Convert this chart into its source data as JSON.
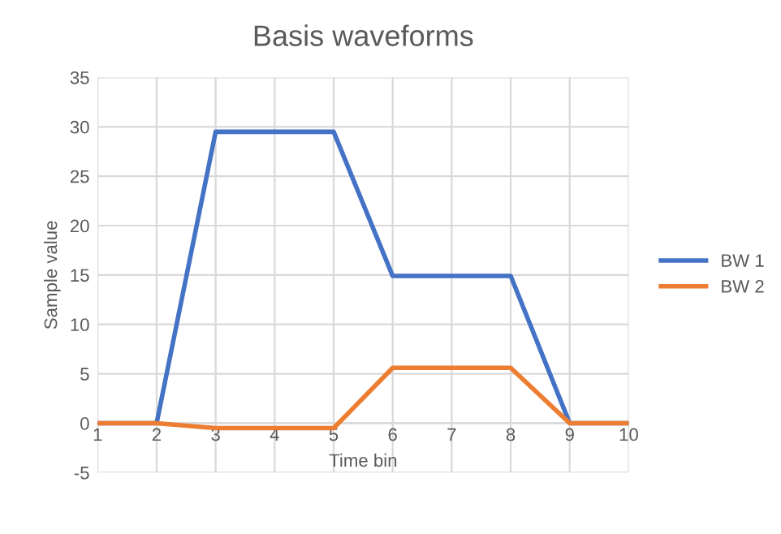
{
  "chart_data": {
    "type": "line",
    "title": "Basis waveforms",
    "xlabel": "Time bin",
    "ylabel": "Sample value",
    "categories": [
      "1",
      "2",
      "3",
      "4",
      "5",
      "6",
      "7",
      "8",
      "9",
      "10"
    ],
    "series": [
      {
        "name": "BW 1",
        "color": "#4472c4",
        "values": [
          0,
          0,
          29.5,
          29.5,
          29.5,
          14.9,
          14.9,
          14.9,
          0,
          0
        ]
      },
      {
        "name": "BW 2",
        "color": "#ed7d31",
        "values": [
          0,
          0,
          -0.5,
          -0.5,
          -0.5,
          5.6,
          5.6,
          5.6,
          0,
          0
        ]
      }
    ],
    "ylim": [
      -5,
      35
    ],
    "yticks": [
      -5,
      0,
      5,
      10,
      15,
      20,
      25,
      30,
      35
    ],
    "grid": true,
    "legend": "right",
    "marker": "none",
    "line_style": "solid"
  }
}
